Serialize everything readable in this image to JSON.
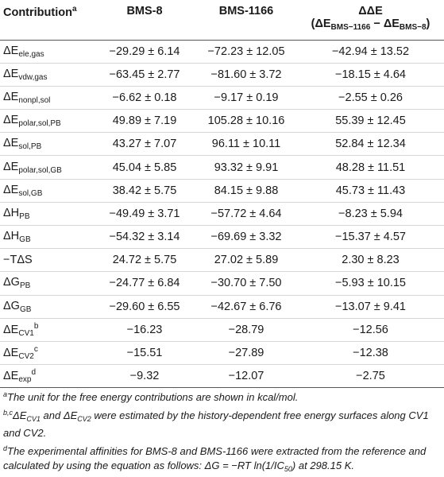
{
  "table": {
    "headers": {
      "contribution": "Contribution",
      "contribution_mark": "a",
      "bms8": "BMS-8",
      "bms1166": "BMS-1166",
      "ddE": "ΔΔE",
      "ddE_formula": {
        "open": "(ΔE",
        "sub1": "BMS−1166",
        "minus": " − ΔE",
        "sub2": "BMS−8",
        "close": ")"
      }
    },
    "rows": [
      {
        "prefix": "ΔE",
        "sub": "ele,gas",
        "sup": "",
        "bms8": "−29.29 ± 6.14",
        "bms1166": "−72.23 ± 12.05",
        "dde": "−42.94 ± 13.52"
      },
      {
        "prefix": "ΔE",
        "sub": "vdw,gas",
        "sup": "",
        "bms8": "−63.45 ± 2.77",
        "bms1166": "−81.60 ± 3.72",
        "dde": "−18.15 ± 4.64"
      },
      {
        "prefix": "ΔE",
        "sub": "nonpl,sol",
        "sup": "",
        "bms8": "−6.62 ± 0.18",
        "bms1166": "−9.17 ± 0.19",
        "dde": "−2.55 ± 0.26"
      },
      {
        "prefix": "ΔE",
        "sub": "polar,sol,PB",
        "sup": "",
        "bms8": "49.89 ± 7.19",
        "bms1166": "105.28 ± 10.16",
        "dde": "55.39 ± 12.45"
      },
      {
        "prefix": "ΔE",
        "sub": "sol,PB",
        "sup": "",
        "bms8": "43.27 ± 7.07",
        "bms1166": "96.11 ± 10.11",
        "dde": "52.84 ± 12.34"
      },
      {
        "prefix": "ΔE",
        "sub": "polar,sol,GB",
        "sup": "",
        "bms8": "45.04 ± 5.85",
        "bms1166": "93.32 ± 9.91",
        "dde": "48.28 ± 11.51"
      },
      {
        "prefix": "ΔE",
        "sub": "sol,GB",
        "sup": "",
        "bms8": "38.42 ± 5.75",
        "bms1166": "84.15 ± 9.88",
        "dde": "45.73 ± 11.43"
      },
      {
        "prefix": "ΔH",
        "sub": "PB",
        "sup": "",
        "bms8": "−49.49 ± 3.71",
        "bms1166": "−57.72 ± 4.64",
        "dde": "−8.23 ± 5.94"
      },
      {
        "prefix": "ΔH",
        "sub": "GB",
        "sup": "",
        "bms8": "−54.32 ± 3.14",
        "bms1166": "−69.69 ± 3.32",
        "dde": "−15.37 ± 4.57"
      },
      {
        "prefix": "−TΔS",
        "sub": "",
        "sup": "",
        "bms8": "24.72 ± 5.75",
        "bms1166": "27.02 ± 5.89",
        "dde": "2.30 ± 8.23"
      },
      {
        "prefix": "ΔG",
        "sub": "PB",
        "sup": "",
        "bms8": "−24.77 ± 6.84",
        "bms1166": "−30.70 ± 7.50",
        "dde": "−5.93 ± 10.15"
      },
      {
        "prefix": "ΔG",
        "sub": "GB",
        "sup": "",
        "bms8": "−29.60 ± 6.55",
        "bms1166": "−42.67 ± 6.76",
        "dde": "−13.07 ± 9.41"
      },
      {
        "prefix": "ΔE",
        "sub": "CV1",
        "sup": "b",
        "bms8": "−16.23",
        "bms1166": "−28.79",
        "dde": "−12.56"
      },
      {
        "prefix": "ΔE",
        "sub": "CV2",
        "sup": "c",
        "bms8": "−15.51",
        "bms1166": "−27.89",
        "dde": "−12.38"
      },
      {
        "prefix": "ΔE",
        "sub": "exp",
        "sup": "d",
        "bms8": "−9.32",
        "bms1166": "−12.07",
        "dde": "−2.75"
      }
    ]
  },
  "footnotes": {
    "a": {
      "mark": "a",
      "text": "The unit for the free energy contributions are shown in kcal/mol."
    },
    "bc": {
      "mark": "b,c",
      "t1": "ΔE",
      "s1": "CV1",
      "t2": " and ΔE",
      "s2": "CV2",
      "t3": " were estimated by the history-dependent free energy surfaces along CV1 and CV2."
    },
    "d": {
      "mark": "d",
      "t1": "The experimental affinities for BMS-8 and BMS-1166 were extracted from the reference and calculated by using the equation as follows: ΔG = −RT ln(1/IC",
      "s1": "50",
      "t2": ") at 298.15 K."
    }
  }
}
